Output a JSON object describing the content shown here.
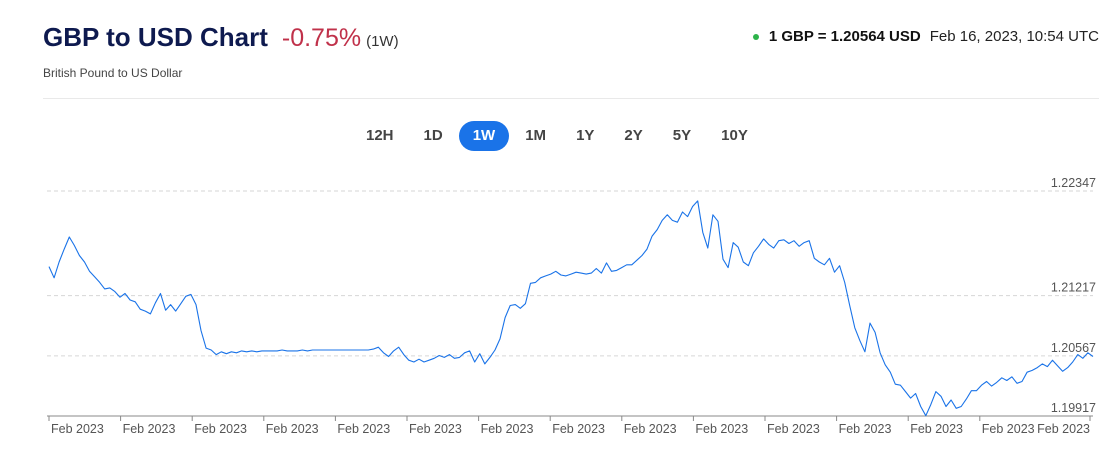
{
  "header": {
    "title": "GBP to USD Chart",
    "change": "-0.75%",
    "period": "(1W)",
    "subtitle": "British Pound to US Dollar",
    "rate_text": "1 GBP = 1.20564 USD",
    "timestamp": "Feb 16, 2023, 10:54 UTC",
    "live_dot_color": "#2db34a",
    "change_color": "#c0314a"
  },
  "ranges": [
    {
      "label": "12H"
    },
    {
      "label": "1D"
    },
    {
      "label": "1W",
      "active": true
    },
    {
      "label": "1M"
    },
    {
      "label": "1Y"
    },
    {
      "label": "2Y"
    },
    {
      "label": "5Y"
    },
    {
      "label": "10Y"
    }
  ],
  "chart_data": {
    "type": "line",
    "line_color": "#1a73e8",
    "ylim": [
      1.19917,
      1.22347
    ],
    "y_ticks": [
      1.22347,
      1.21217,
      1.20567,
      1.19917
    ],
    "y_tick_labels": [
      "1.22347",
      "1.21217",
      "1.20567",
      "1.19917"
    ],
    "x_tick_labels": [
      "Feb 2023",
      "Feb 2023",
      "Feb 2023",
      "Feb 2023",
      "Feb 2023",
      "Feb 2023",
      "Feb 2023",
      "Feb 2023",
      "Feb 2023",
      "Feb 2023",
      "Feb 2023",
      "Feb 2023",
      "Feb 2023",
      "Feb 2023",
      "Feb 2023"
    ],
    "grid": "horizontal-dashed",
    "series": [
      {
        "values": [
          1.2153,
          1.2141,
          1.2158,
          1.2172,
          1.2185,
          1.2176,
          1.2165,
          1.2158,
          1.2148,
          1.2142,
          1.2136,
          1.2129,
          1.213,
          1.2126,
          1.212,
          1.2124,
          1.2117,
          1.2115,
          1.2107,
          1.2105,
          1.2102,
          1.2114,
          1.2124,
          1.2106,
          1.2112,
          1.2105,
          1.2113,
          1.2121,
          1.2123,
          1.2112,
          1.2084,
          1.2065,
          1.2063,
          1.2058,
          1.2061,
          1.2059,
          1.2061,
          1.206,
          1.2062,
          1.2061,
          1.2062,
          1.2061,
          1.2062,
          1.2062,
          1.2062,
          1.2062,
          1.2063,
          1.2062,
          1.2062,
          1.2062,
          1.2063,
          1.2062,
          1.2063,
          1.2063,
          1.2063,
          1.2063,
          1.2063,
          1.2063,
          1.2063,
          1.2063,
          1.2063,
          1.2063,
          1.2063,
          1.2063,
          1.2064,
          1.2066,
          1.206,
          1.2056,
          1.2062,
          1.2066,
          1.2058,
          1.2052,
          1.205,
          1.2053,
          1.205,
          1.2052,
          1.2054,
          1.2057,
          1.2055,
          1.2058,
          1.2054,
          1.2055,
          1.206,
          1.2062,
          1.205,
          1.2059,
          1.2048,
          1.2055,
          1.2063,
          1.2075,
          1.2098,
          1.2111,
          1.2112,
          1.2108,
          1.2113,
          1.2135,
          1.2136,
          1.2141,
          1.2143,
          1.2145,
          1.2148,
          1.2144,
          1.2143,
          1.2145,
          1.2147,
          1.2146,
          1.2145,
          1.2146,
          1.2151,
          1.2146,
          1.2157,
          1.2148,
          1.2149,
          1.2152,
          1.2155,
          1.2155,
          1.216,
          1.2165,
          1.2172,
          1.2186,
          1.2193,
          1.2203,
          1.2209,
          1.2203,
          1.2201,
          1.2212,
          1.2207,
          1.2218,
          1.2224,
          1.219,
          1.2173,
          1.2209,
          1.2202,
          1.2161,
          1.2152,
          1.2179,
          1.2174,
          1.2158,
          1.2154,
          1.2168,
          1.2175,
          1.2183,
          1.2177,
          1.2173,
          1.2181,
          1.2182,
          1.2178,
          1.2181,
          1.2175,
          1.2179,
          1.2181,
          1.2162,
          1.2158,
          1.2155,
          1.2162,
          1.2147,
          1.2154,
          1.2136,
          1.2111,
          1.2087,
          1.2073,
          1.2061,
          1.2092,
          1.2082,
          1.206,
          1.2047,
          1.2039,
          1.2026,
          1.2025,
          1.2018,
          1.2011,
          1.2016,
          1.2002,
          1.1992,
          1.2004,
          1.2018,
          1.2013,
          1.2002,
          1.2009,
          1.2,
          1.2002,
          1.201,
          1.2019,
          1.2019,
          1.2025,
          1.2029,
          1.2024,
          1.2028,
          1.2033,
          1.203,
          1.2034,
          1.2027,
          1.2029,
          1.2039,
          1.2041,
          1.2044,
          1.2048,
          1.2045,
          1.2052,
          1.2046,
          1.204,
          1.2044,
          1.205,
          1.2058,
          1.2054,
          1.206,
          1.2056
        ]
      }
    ]
  }
}
